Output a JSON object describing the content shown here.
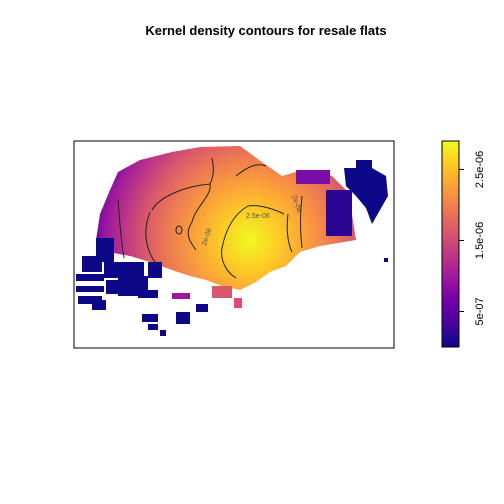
{
  "chart_data": {
    "type": "heatmap",
    "title": "Kernel density contours for resale flats",
    "xlabel": "",
    "ylabel": "",
    "colorbar": {
      "range": [
        0,
        2.9e-06
      ],
      "ticks": [
        {
          "value": 5e-07,
          "label": "5e-07"
        },
        {
          "value": 1.5e-06,
          "label": "1.5e-06"
        },
        {
          "value": 2.5e-06,
          "label": "2.5e-06"
        }
      ],
      "palette": [
        "#0d0887",
        "#46039f",
        "#7201a8",
        "#9c179e",
        "#bd3786",
        "#d8576b",
        "#ed7953",
        "#fb9f3a",
        "#fdca26",
        "#f0f921"
      ]
    },
    "contours": [
      {
        "level": 2e-06,
        "label": "2e-06"
      },
      {
        "level": 2.5e-06,
        "label": "2.5e-06"
      }
    ],
    "grid": false,
    "legend": "right"
  }
}
